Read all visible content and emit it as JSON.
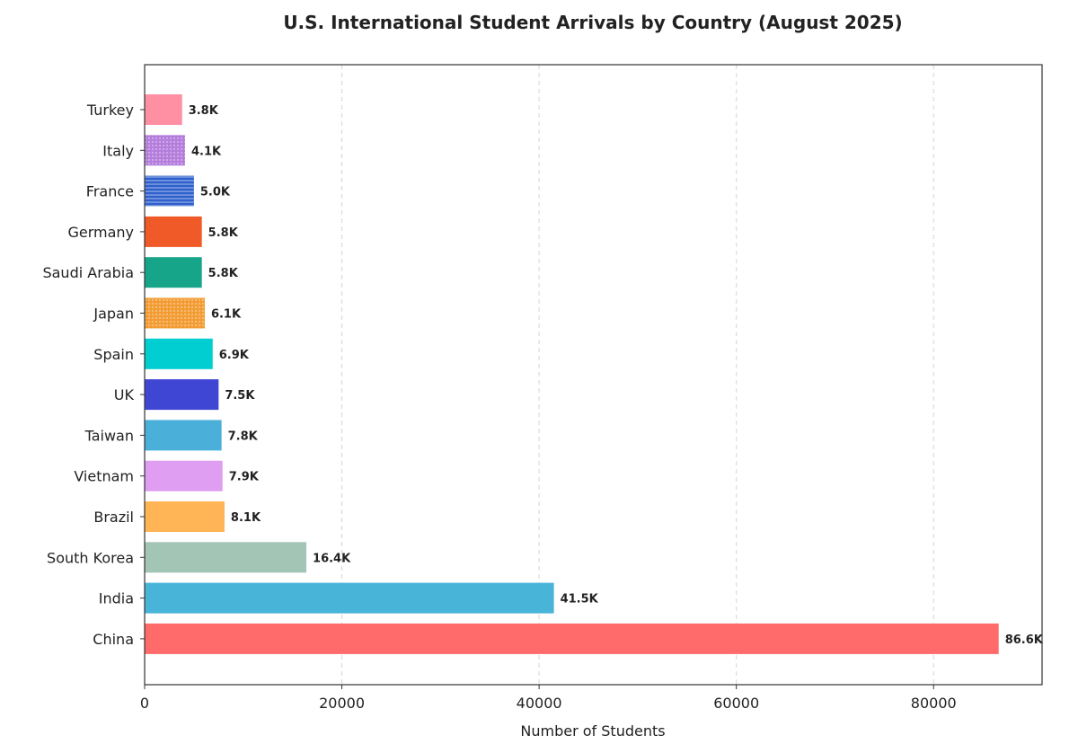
{
  "chart_data": {
    "type": "bar",
    "orientation": "horizontal",
    "title": "U.S. International Student Arrivals by Country (August 2025)",
    "xlabel": "Number of Students",
    "ylabel": "",
    "xlim": [
      0,
      91000
    ],
    "x_ticks": [
      0,
      20000,
      40000,
      60000,
      80000
    ],
    "x_tick_labels": [
      "0",
      "20000",
      "40000",
      "60000",
      "80000"
    ],
    "grid": "vertical dashed",
    "categories": [
      "Turkey",
      "Italy",
      "France",
      "Germany",
      "Saudi Arabia",
      "Japan",
      "Spain",
      "UK",
      "Taiwan",
      "Vietnam",
      "Brazil",
      "South Korea",
      "India",
      "China"
    ],
    "values": [
      3800,
      4100,
      5000,
      5800,
      5800,
      6100,
      6900,
      7500,
      7800,
      7900,
      8100,
      16400,
      41500,
      86600
    ],
    "data_labels": [
      "3.8K",
      "4.1K",
      "5.0K",
      "5.8K",
      "5.8K",
      "6.1K",
      "6.9K",
      "7.5K",
      "7.8K",
      "7.9K",
      "8.1K",
      "16.4K",
      "41.5K",
      "86.6K"
    ],
    "colors": [
      "#FF8FA3",
      "#B57EDC",
      "#2E5FCC",
      "#F05A28",
      "#17A589",
      "#F39C34",
      "#00CED1",
      "#4046D4",
      "#4AB0D9",
      "#E09EF2",
      "#FFB555",
      "#A3C5B5",
      "#48B4D8",
      "#FF6B6B"
    ],
    "patterns": [
      "none",
      "dots",
      "lines",
      "none",
      "none",
      "dots",
      "none",
      "none",
      "none",
      "none",
      "none",
      "none",
      "none",
      "none"
    ]
  }
}
